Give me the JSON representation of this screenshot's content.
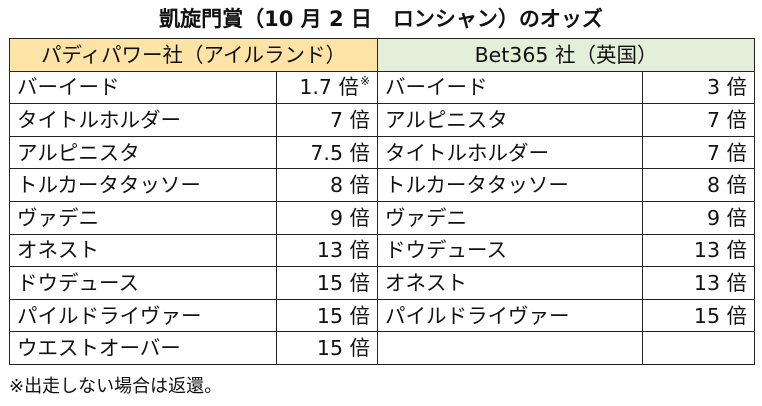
{
  "title": "凱旋門賞（10 月 2 日　ロンシャン）のオッズ",
  "bookmakers": [
    {
      "name": "パディパワー社（アイルランド）",
      "color": "#fde3a6",
      "rows": [
        {
          "horse": "バーイード",
          "odds": "1.7 倍",
          "mark": "※"
        },
        {
          "horse": "タイトルホルダー",
          "odds": "7 倍",
          "mark": ""
        },
        {
          "horse": "アルピニスタ",
          "odds": "7.5 倍",
          "mark": ""
        },
        {
          "horse": "トルカータタッソー",
          "odds": "8 倍",
          "mark": ""
        },
        {
          "horse": "ヴァデニ",
          "odds": "9 倍",
          "mark": ""
        },
        {
          "horse": "オネスト",
          "odds": "13 倍",
          "mark": ""
        },
        {
          "horse": "ドウデュース",
          "odds": "15 倍",
          "mark": ""
        },
        {
          "horse": "パイルドライヴァー",
          "odds": "15 倍",
          "mark": ""
        },
        {
          "horse": "ウエストオーバー",
          "odds": "15 倍",
          "mark": ""
        }
      ]
    },
    {
      "name": "Bet365 社（英国）",
      "color": "#e3efd9",
      "rows": [
        {
          "horse": "バーイード",
          "odds": "3 倍",
          "mark": ""
        },
        {
          "horse": "アルピニスタ",
          "odds": "7 倍",
          "mark": ""
        },
        {
          "horse": "タイトルホルダー",
          "odds": "7 倍",
          "mark": ""
        },
        {
          "horse": "トルカータタッソー",
          "odds": "8 倍",
          "mark": ""
        },
        {
          "horse": "ヴァデニ",
          "odds": "9 倍",
          "mark": ""
        },
        {
          "horse": "ドウデュース",
          "odds": "13 倍",
          "mark": ""
        },
        {
          "horse": "オネスト",
          "odds": "13 倍",
          "mark": ""
        },
        {
          "horse": "パイルドライヴァー",
          "odds": "15 倍",
          "mark": ""
        },
        {
          "horse": "",
          "odds": "",
          "mark": ""
        }
      ]
    }
  ],
  "footnote": "※出走しない場合は返還。"
}
